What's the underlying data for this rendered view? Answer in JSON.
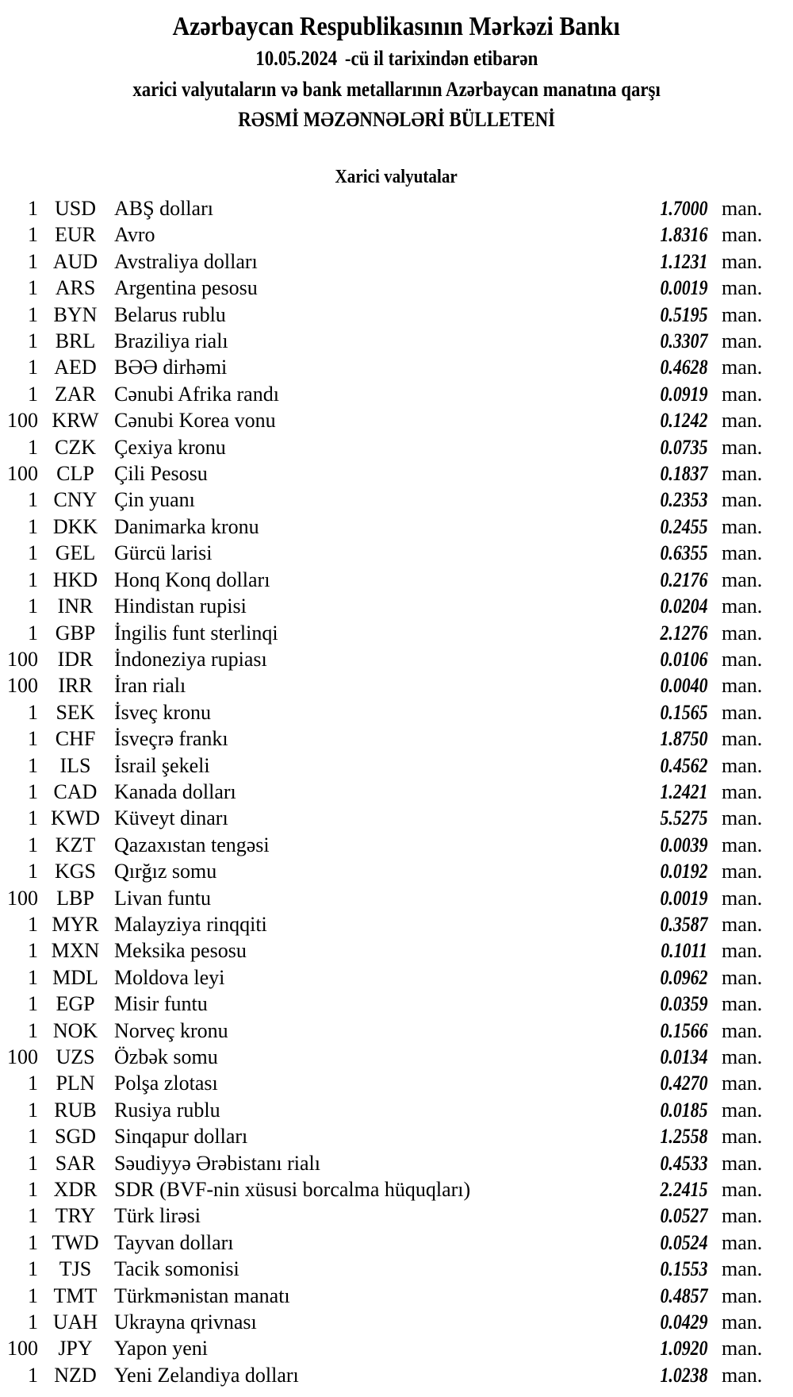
{
  "header": {
    "title": "Azərbaycan Respublikasının Mərkəzi Bankı",
    "date": "10.05.2024",
    "date_suffix": "-cü il tarixindən etibarən",
    "subtitle": "xarici valyutaların və bank metallarının Azərbaycan manatına qarşı",
    "bulletin": "RƏSMİ MƏZƏNNƏLƏRİ BÜLLETENİ"
  },
  "section": {
    "title": "Xarici valyutalar"
  },
  "unit_label": "man.",
  "rates": [
    {
      "qty": "1",
      "code": "USD",
      "name": "ABŞ dolları",
      "rate": "1.7000"
    },
    {
      "qty": "1",
      "code": "EUR",
      "name": "Avro",
      "rate": "1.8316"
    },
    {
      "qty": "1",
      "code": "AUD",
      "name": "Avstraliya dolları",
      "rate": "1.1231"
    },
    {
      "qty": "1",
      "code": "ARS",
      "name": "Argentina pesosu",
      "rate": "0.0019"
    },
    {
      "qty": "1",
      "code": "BYN",
      "name": "Belarus rublu",
      "rate": "0.5195"
    },
    {
      "qty": "1",
      "code": "BRL",
      "name": "Braziliya rialı",
      "rate": "0.3307"
    },
    {
      "qty": "1",
      "code": "AED",
      "name": "BƏƏ dirhəmi",
      "rate": "0.4628"
    },
    {
      "qty": "1",
      "code": "ZAR",
      "name": "Cənubi Afrika randı",
      "rate": "0.0919"
    },
    {
      "qty": "100",
      "code": "KRW",
      "name": "Cənubi Korea vonu",
      "rate": "0.1242"
    },
    {
      "qty": "1",
      "code": "CZK",
      "name": "Çexiya kronu",
      "rate": "0.0735"
    },
    {
      "qty": "100",
      "code": "CLP",
      "name": "Çili Pesosu",
      "rate": "0.1837"
    },
    {
      "qty": "1",
      "code": "CNY",
      "name": "Çin yuanı",
      "rate": "0.2353"
    },
    {
      "qty": "1",
      "code": "DKK",
      "name": "Danimarka kronu",
      "rate": "0.2455"
    },
    {
      "qty": "1",
      "code": "GEL",
      "name": "Gürcü larisi",
      "rate": "0.6355"
    },
    {
      "qty": "1",
      "code": "HKD",
      "name": "Honq Konq dolları",
      "rate": "0.2176"
    },
    {
      "qty": "1",
      "code": "INR",
      "name": "Hindistan rupisi",
      "rate": "0.0204"
    },
    {
      "qty": "1",
      "code": "GBP",
      "name": "İngilis funt sterlinqi",
      "rate": "2.1276"
    },
    {
      "qty": "100",
      "code": "IDR",
      "name": "İndoneziya rupiası",
      "rate": "0.0106"
    },
    {
      "qty": "100",
      "code": "IRR",
      "name": "İran rialı",
      "rate": "0.0040"
    },
    {
      "qty": "1",
      "code": "SEK",
      "name": "İsveç kronu",
      "rate": "0.1565"
    },
    {
      "qty": "1",
      "code": "CHF",
      "name": "İsveçrə frankı",
      "rate": "1.8750"
    },
    {
      "qty": "1",
      "code": "ILS",
      "name": "İsrail şekeli",
      "rate": "0.4562"
    },
    {
      "qty": "1",
      "code": "CAD",
      "name": "Kanada dolları",
      "rate": "1.2421"
    },
    {
      "qty": "1",
      "code": "KWD",
      "name": "Küveyt dinarı",
      "rate": "5.5275"
    },
    {
      "qty": "1",
      "code": "KZT",
      "name": "Qazaxıstan tengəsi",
      "rate": "0.0039"
    },
    {
      "qty": "1",
      "code": "KGS",
      "name": "Qırğız somu",
      "rate": "0.0192"
    },
    {
      "qty": "100",
      "code": "LBP",
      "name": "Livan funtu",
      "rate": "0.0019"
    },
    {
      "qty": "1",
      "code": "MYR",
      "name": "Malayziya rinqqiti",
      "rate": "0.3587"
    },
    {
      "qty": "1",
      "code": "MXN",
      "name": "Meksika pesosu",
      "rate": "0.1011"
    },
    {
      "qty": "1",
      "code": "MDL",
      "name": "Moldova leyi",
      "rate": "0.0962"
    },
    {
      "qty": "1",
      "code": "EGP",
      "name": "Misir funtu",
      "rate": "0.0359"
    },
    {
      "qty": "1",
      "code": "NOK",
      "name": "Norveç kronu",
      "rate": "0.1566"
    },
    {
      "qty": "100",
      "code": "UZS",
      "name": "Özbək somu",
      "rate": "0.0134"
    },
    {
      "qty": "1",
      "code": "PLN",
      "name": "Polşa zlotası",
      "rate": "0.4270"
    },
    {
      "qty": "1",
      "code": "RUB",
      "name": "Rusiya rublu",
      "rate": "0.0185"
    },
    {
      "qty": "1",
      "code": "SGD",
      "name": "Sinqapur dolları",
      "rate": "1.2558"
    },
    {
      "qty": "1",
      "code": "SAR",
      "name": "Səudiyyə Ərəbistanı rialı",
      "rate": "0.4533"
    },
    {
      "qty": "1",
      "code": "XDR",
      "name": "SDR (BVF-nin xüsusi borcalma hüquqları)",
      "rate": "2.2415"
    },
    {
      "qty": "1",
      "code": "TRY",
      "name": "Türk lirəsi",
      "rate": "0.0527"
    },
    {
      "qty": "1",
      "code": "TWD",
      "name": "Tayvan dolları",
      "rate": "0.0524"
    },
    {
      "qty": "1",
      "code": "TJS",
      "name": "Tacik somonisi",
      "rate": "0.1553"
    },
    {
      "qty": "1",
      "code": "TMT",
      "name": "Türkmənistan manatı",
      "rate": "0.4857"
    },
    {
      "qty": "1",
      "code": "UAH",
      "name": "Ukrayna qrivnası",
      "rate": "0.0429"
    },
    {
      "qty": "100",
      "code": "JPY",
      "name": "Yapon yeni",
      "rate": "1.0920"
    },
    {
      "qty": "1",
      "code": "NZD",
      "name": "Yeni Zelandiya dolları",
      "rate": "1.0238"
    }
  ]
}
